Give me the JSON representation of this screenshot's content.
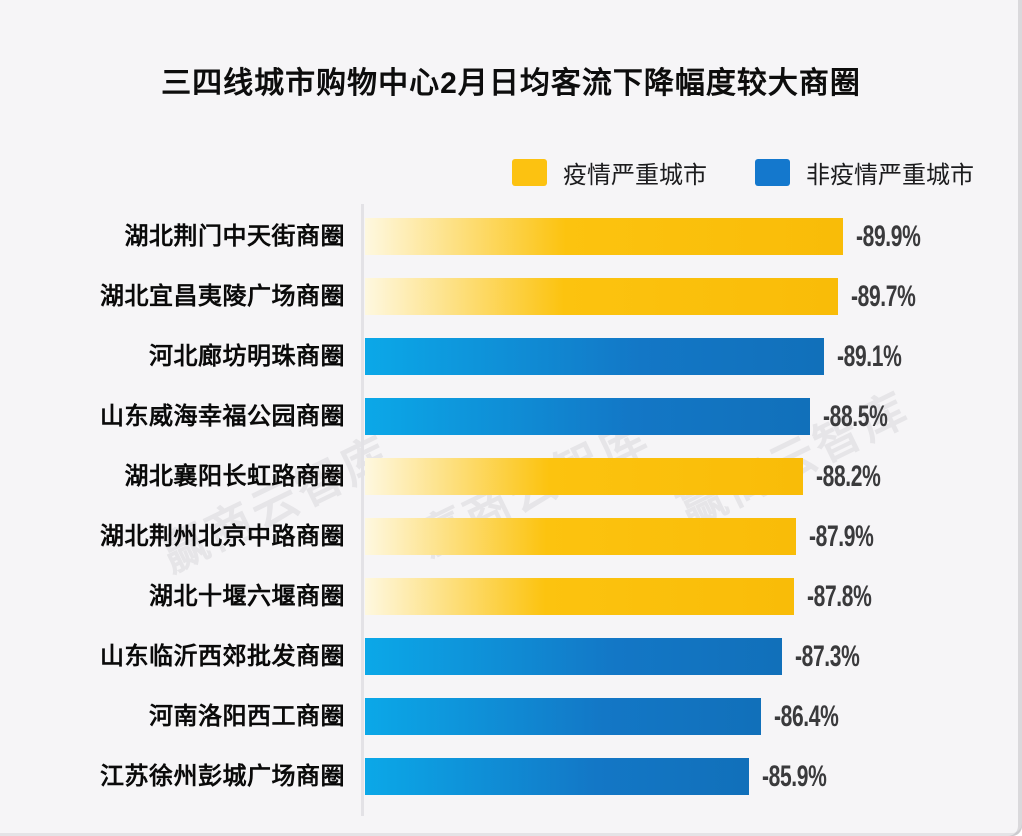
{
  "title": "三四线城市购物中心2月日均客流下降幅度较大商圈",
  "watermark": {
    "text": "赢商云智库"
  },
  "colors": {
    "bg": "#f6f5f7",
    "title_text": "#0d0d0d",
    "value_text": "#3a3a3c",
    "legend_yellow": "#fcc211",
    "legend_blue": "#1478cd",
    "yellow_light": "#fef8e0",
    "yellow": "#fcc30f",
    "yellow_deep": "#f9bc08",
    "blue_light": "#0ba8e8",
    "blue": "#1377c6",
    "blue_deep": "#1170ba"
  },
  "chart_data": {
    "type": "bar",
    "orientation": "horizontal",
    "title": "三四线城市购物中心2月日均客流下降幅度较大商圈",
    "legend": [
      {
        "label": "疫情严重城市",
        "color": "#fcc211",
        "group": "severe"
      },
      {
        "label": "非疫情严重城市",
        "color": "#1478cd",
        "group": "nonsevere"
      }
    ],
    "legend_position": "top-right",
    "grid": false,
    "xlim_abs": [
      69.6,
      90
    ],
    "categories": [
      "湖北荆门中天街商圈",
      "湖北宜昌夷陵广场商圈",
      "河北廊坊明珠商圈",
      "山东威海幸福公园商圈",
      "湖北襄阳长虹路商圈",
      "湖北荆州北京中路商圈",
      "湖北十堰六堰商圈",
      "山东临沂西郊批发商圈",
      "河南洛阳西工商圈",
      "江苏徐州彭城广场商圈"
    ],
    "values": [
      -89.9,
      -89.7,
      -89.1,
      -88.5,
      -88.2,
      -87.9,
      -87.8,
      -87.3,
      -86.4,
      -85.9
    ],
    "value_labels": [
      "-89.9%",
      "-89.7%",
      "-89.1%",
      "-88.5%",
      "-88.2%",
      "-87.9%",
      "-87.8%",
      "-87.3%",
      "-86.4%",
      "-85.9%"
    ],
    "groups": [
      "severe",
      "severe",
      "nonsevere",
      "nonsevere",
      "severe",
      "severe",
      "severe",
      "nonsevere",
      "nonsevere",
      "nonsevere"
    ]
  }
}
